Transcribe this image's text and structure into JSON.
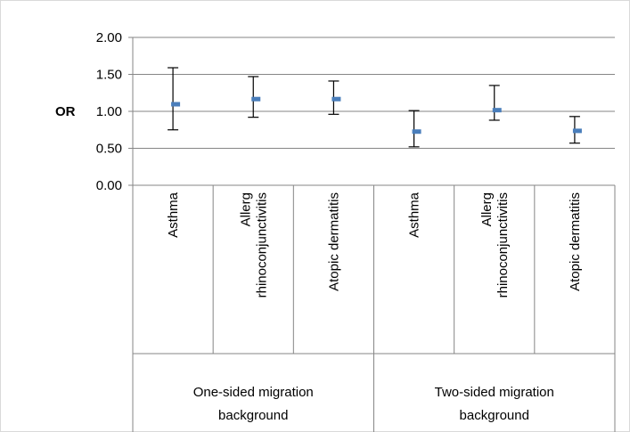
{
  "chart_data": {
    "type": "scatter",
    "title": "",
    "ylabel": "OR",
    "xlabel": "",
    "ylim": [
      0,
      2
    ],
    "yticks": [
      0,
      0.5,
      1,
      1.5,
      2
    ],
    "ytick_labels": [
      "0.00",
      "0.50",
      "1.00",
      "1.50",
      "2.00"
    ],
    "grid": true,
    "error_bars": true,
    "groups": [
      {
        "label_lines": [
          "One-sided migration",
          "background"
        ],
        "categories": [
          {
            "label_lines": [
              "Asthma"
            ],
            "value": 1.09,
            "lower": 0.75,
            "upper": 1.59
          },
          {
            "label_lines": [
              "Allerg",
              "rhinoconjunctivitis"
            ],
            "value": 1.16,
            "lower": 0.92,
            "upper": 1.47
          },
          {
            "label_lines": [
              "Atopic dermatitis"
            ],
            "value": 1.16,
            "lower": 0.96,
            "upper": 1.41
          }
        ]
      },
      {
        "label_lines": [
          "Two-sided migration",
          "background"
        ],
        "categories": [
          {
            "label_lines": [
              "Asthma"
            ],
            "value": 0.72,
            "lower": 0.52,
            "upper": 1.01
          },
          {
            "label_lines": [
              "Allerg",
              "rhinoconjunctivitis"
            ],
            "value": 1.01,
            "lower": 0.88,
            "upper": 1.35
          },
          {
            "label_lines": [
              "Atopic dermatitis"
            ],
            "value": 0.73,
            "lower": 0.57,
            "upper": 0.93
          }
        ]
      }
    ],
    "colors": {
      "marker": "#4a7ebb",
      "error_bar": "#000000",
      "grid": "#868686",
      "axis": "#868686"
    }
  }
}
